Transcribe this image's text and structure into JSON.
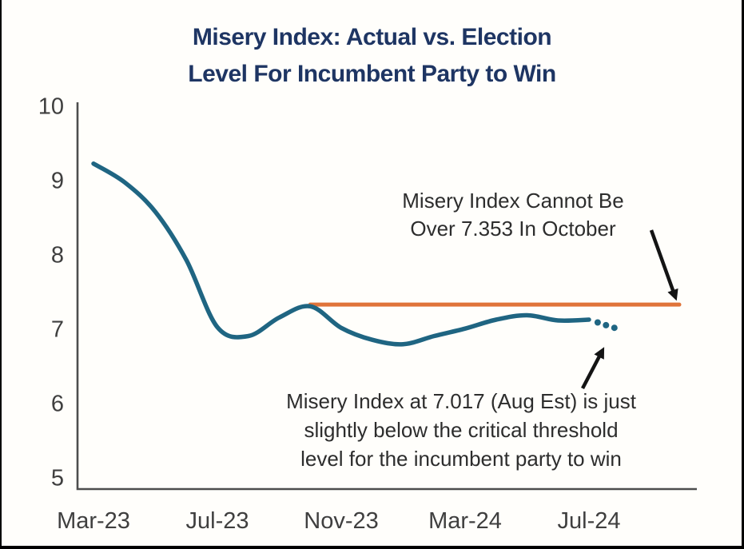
{
  "title": {
    "lines": [
      "Misery Index: Actual vs. Election",
      "Level For Incumbent Party to Win"
    ],
    "color": "#1e3563"
  },
  "chart_data": {
    "type": "line",
    "title": "Misery Index: Actual vs. Election Level For Incumbent Party to Win",
    "grid": false,
    "legend_position": "none",
    "y_axis": {
      "range": [
        5,
        10
      ],
      "ticks": [
        "10",
        "9",
        "8",
        "7",
        "6",
        "5"
      ]
    },
    "x_axis": {
      "ticks": [
        "Mar-23",
        "Jul-23",
        "Nov-23",
        "Mar-24",
        "Jul-24"
      ]
    },
    "series": [
      {
        "name": "misery-index-actual",
        "color": "#1f6582",
        "style": "solid-smooth",
        "months": [
          "Mar-23",
          "Apr-23",
          "May-23",
          "Jun-23",
          "Jul-23",
          "Aug-23",
          "Sep-23",
          "Oct-23",
          "Nov-23",
          "Dec-23",
          "Jan-24",
          "Feb-24",
          "Mar-24",
          "Apr-24",
          "May-24",
          "Jun-24",
          "Jul-24"
        ],
        "values": [
          9.25,
          9.0,
          8.6,
          7.95,
          7.05,
          6.93,
          7.18,
          7.33,
          7.04,
          6.88,
          6.82,
          6.93,
          7.03,
          7.15,
          7.21,
          7.14,
          7.15
        ]
      },
      {
        "name": "misery-index-estimate-dotted",
        "color": "#1f6582",
        "style": "dotted",
        "months": [
          "Jul-24",
          "Aug-24"
        ],
        "values": [
          7.15,
          7.017
        ]
      },
      {
        "name": "election-threshold-level",
        "color": "#e0743a",
        "style": "solid",
        "value": 7.353,
        "from_month": "Oct-23"
      }
    ],
    "annotations": [
      {
        "id": "threshold",
        "lines": [
          "Misery Index Cannot Be",
          "Over 7.353 In October"
        ]
      },
      {
        "id": "estimate",
        "lines": [
          "Misery Index at 7.017 (Aug Est) is just",
          "slightly below the critical threshold",
          "level for the incumbent party to win"
        ]
      }
    ]
  }
}
